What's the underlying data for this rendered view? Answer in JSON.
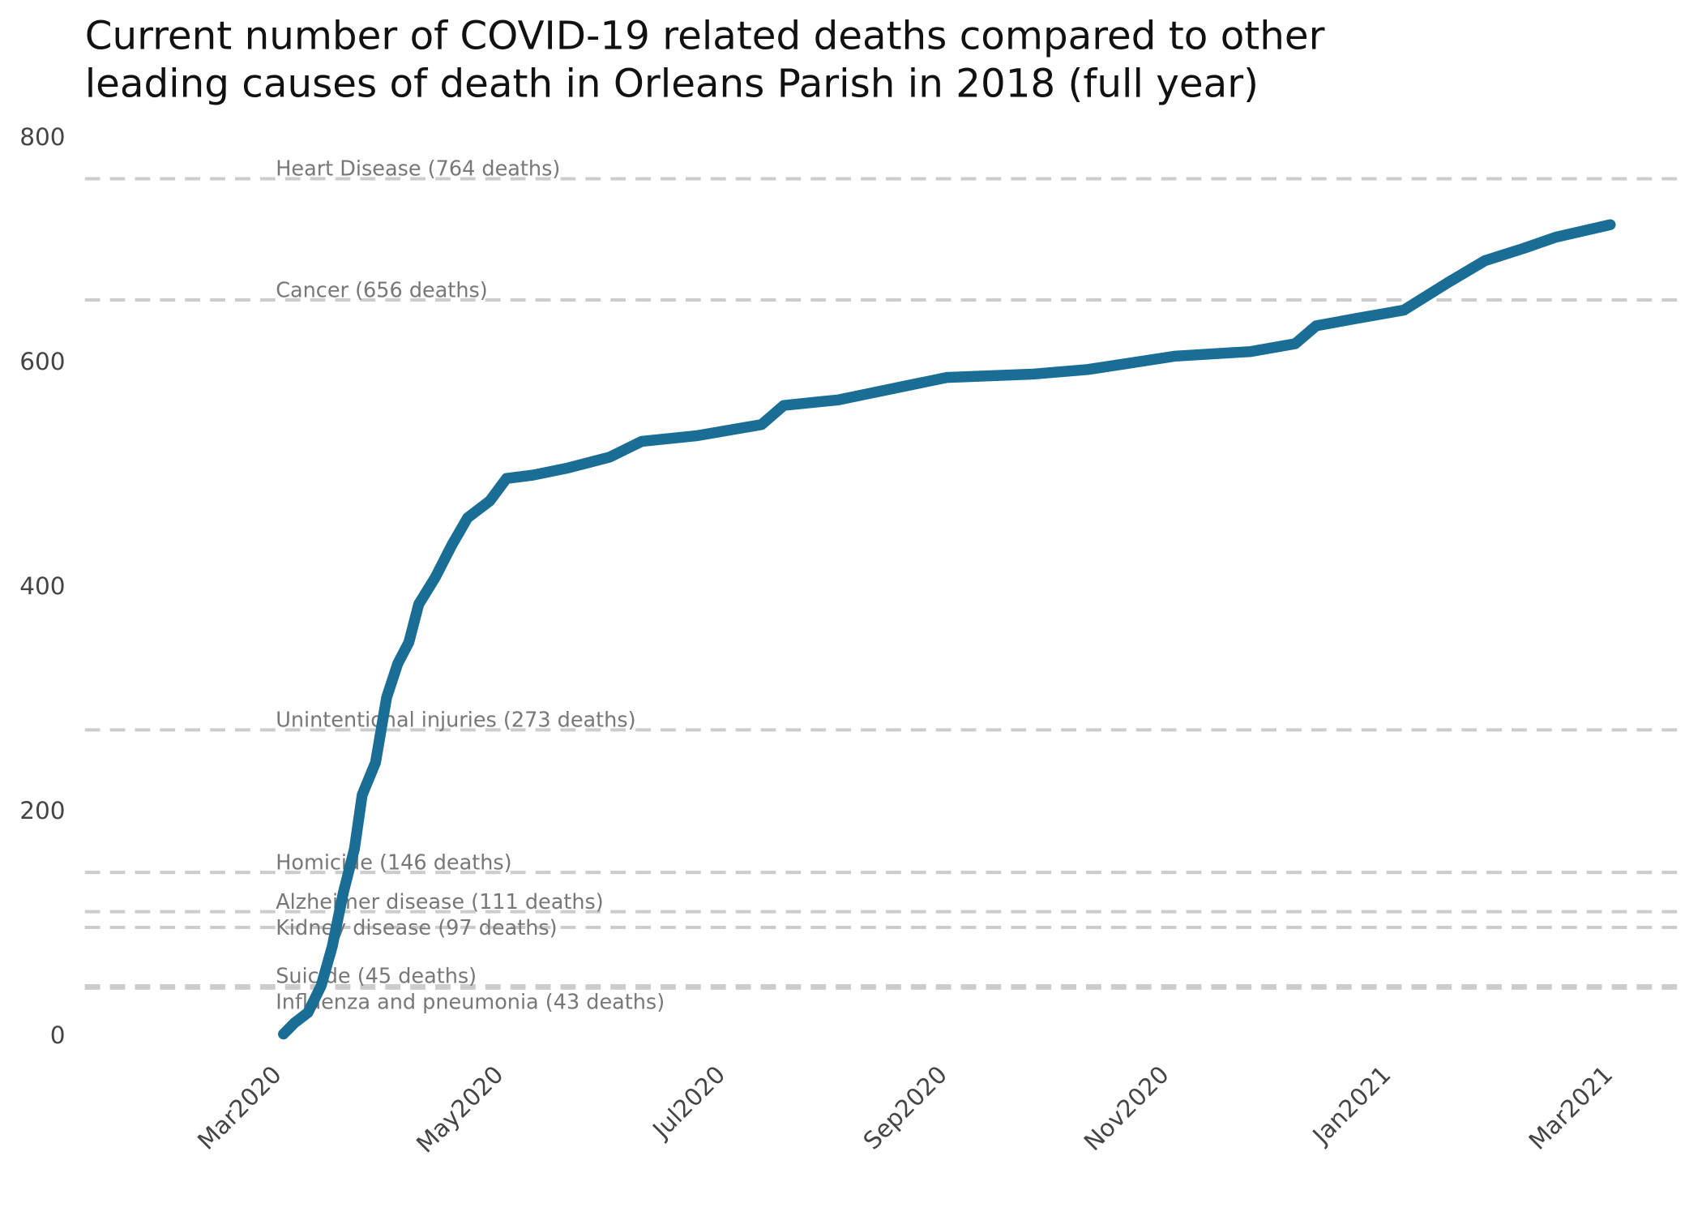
{
  "chart_data": {
    "type": "line",
    "title": [
      "Current number of COVID-19 related deaths compared to other",
      "leading causes of death in Orleans Parish in 2018 (full year)"
    ],
    "xlim": [
      -1.74,
      12.7
    ],
    "ylim": [
      0,
      800
    ],
    "yticks": [
      0,
      200,
      400,
      600,
      800
    ],
    "xticks": [
      {
        "value": 0,
        "label": "Mar2020"
      },
      {
        "value": 2,
        "label": "May2020"
      },
      {
        "value": 4,
        "label": "Jul2020"
      },
      {
        "value": 6,
        "label": "Sep2020"
      },
      {
        "value": 8,
        "label": "Nov2020"
      },
      {
        "value": 10,
        "label": "Jan2021"
      },
      {
        "value": 12,
        "label": "Mar2021"
      }
    ],
    "reference_lines": [
      {
        "label": "Heart Disease (764 deaths)",
        "value": 764
      },
      {
        "label": "Cancer (656 deaths)",
        "value": 656
      },
      {
        "label": "Unintentional injuries (273 deaths)",
        "value": 273
      },
      {
        "label": "Homicide (146 deaths)",
        "value": 146
      },
      {
        "label": "Alzheimer disease (111 deaths)",
        "value": 111
      },
      {
        "label": "Kidney disease (97 deaths)",
        "value": 97
      },
      {
        "label": "Suicide (45 deaths)",
        "value": 45
      },
      {
        "label": "Influenza and pneumonia (43 deaths)",
        "value": 43
      }
    ],
    "reference_color": "#cccccc",
    "series": [
      {
        "color": "#1a6e96",
        "x": [
          0.05,
          0.15,
          0.27,
          0.39,
          0.49,
          0.59,
          0.69,
          0.76,
          0.88,
          0.98,
          1.08,
          1.18,
          1.27,
          1.42,
          1.57,
          1.71,
          1.91,
          2.06,
          2.3,
          2.6,
          2.99,
          3.28,
          3.77,
          4.36,
          4.56,
          5.05,
          5.64,
          6.03,
          6.81,
          7.3,
          8.09,
          8.77,
          9.17,
          9.36,
          9.75,
          10.15,
          10.54,
          10.88,
          11.23,
          11.52,
          12.01
        ],
        "values": [
          2,
          12,
          21,
          45,
          80,
          128,
          167,
          215,
          244,
          302,
          332,
          351,
          385,
          409,
          438,
          462,
          477,
          497,
          500,
          506,
          516,
          530,
          535,
          545,
          562,
          567,
          579,
          587,
          590,
          594,
          606,
          610,
          617,
          633,
          640,
          647,
          671,
          691,
          702,
          712,
          723
        ]
      }
    ]
  }
}
